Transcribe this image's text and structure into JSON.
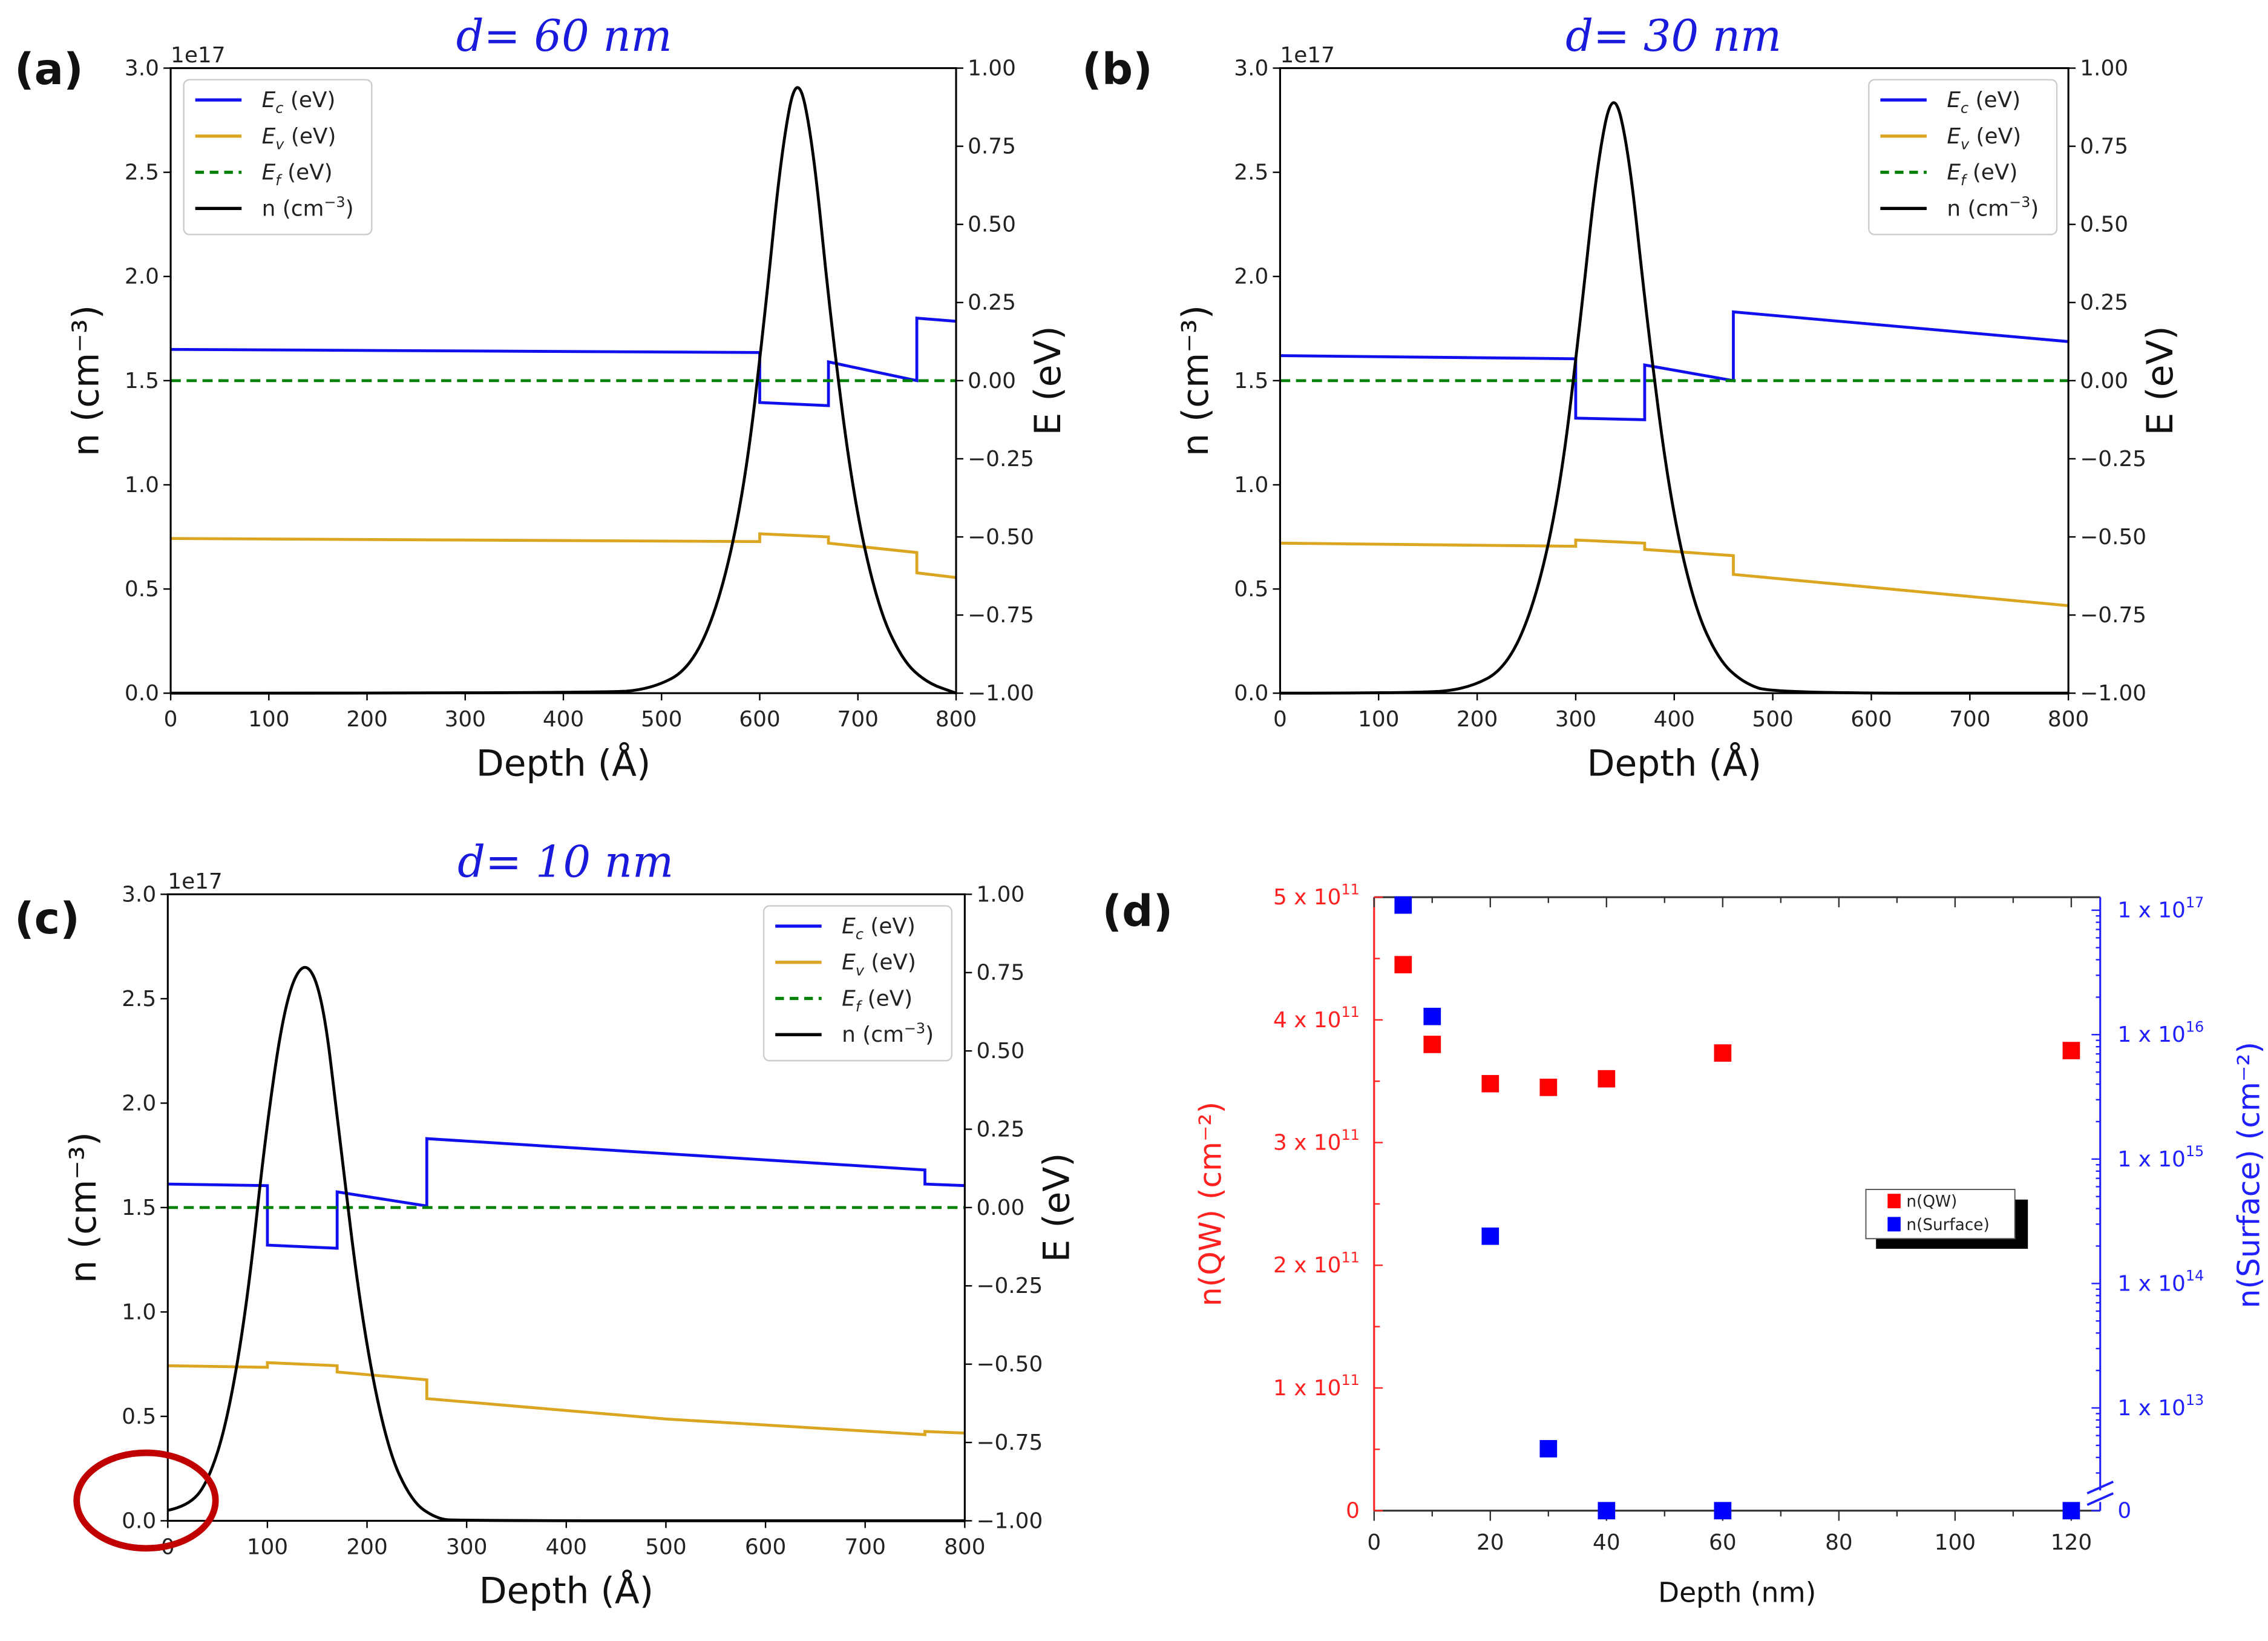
{
  "figure": {
    "panel_labels": [
      "(a)",
      "(b)",
      "(c)",
      "(d)"
    ]
  },
  "chart_data": [
    {
      "type": "line",
      "panel": "(a)",
      "title": "d= 60 nm",
      "xlabel": "Depth (Å)",
      "ylabel": "n (cm⁻³)",
      "ylabel_right": "E (eV)",
      "offset_text": "1e17",
      "xlim": [
        0,
        800
      ],
      "ylim": [
        0,
        3.0
      ],
      "ylim_right": [
        -1,
        1
      ],
      "xticks": [
        "0",
        "100",
        "200",
        "300",
        "400",
        "500",
        "600",
        "700",
        "800"
      ],
      "yticks": [
        "0.0",
        "0.5",
        "1.0",
        "1.5",
        "2.0",
        "2.5",
        "3.0"
      ],
      "yticks_right": [
        "−1.00",
        "−0.75",
        "−0.50",
        "−0.25",
        "0.00",
        "0.25",
        "0.50",
        "0.75",
        "1.00"
      ],
      "legend_position": "top-left",
      "series": [
        {
          "name": "Ec (eV)",
          "label_main": "E",
          "label_sub": "c",
          "label_rest": " (eV)",
          "axis": "right",
          "color": "#1010ee",
          "dash": false,
          "points": [
            [
              0,
              0.1
            ],
            [
              600,
              0.09
            ],
            [
              600,
              -0.07
            ],
            [
              670,
              -0.08
            ],
            [
              670,
              0.06
            ],
            [
              760,
              0.0
            ],
            [
              760,
              0.2
            ],
            [
              800,
              0.19
            ]
          ]
        },
        {
          "name": "Ev (eV)",
          "label_main": "E",
          "label_sub": "v",
          "label_rest": " (eV)",
          "axis": "right",
          "color": "#daa520",
          "dash": false,
          "points": [
            [
              0,
              -0.505
            ],
            [
              600,
              -0.515
            ],
            [
              600,
              -0.49
            ],
            [
              670,
              -0.5
            ],
            [
              670,
              -0.52
            ],
            [
              760,
              -0.55
            ],
            [
              760,
              -0.615
            ],
            [
              800,
              -0.63
            ]
          ]
        },
        {
          "name": "Ef (eV)",
          "label_main": "E",
          "label_sub": "f",
          "label_rest": " (eV)",
          "axis": "right",
          "color": "#008000",
          "dash": true,
          "points": [
            [
              0,
              0
            ],
            [
              800,
              0
            ]
          ]
        },
        {
          "name": "n (cm-3)",
          "label_main": "n (cm",
          "label_sup": "−3",
          "label_rest": ")",
          "axis": "left",
          "color": "#000000",
          "dash": false,
          "points": [
            [
              0,
              0
            ],
            [
              440,
              0
            ],
            [
              490,
              0.02
            ],
            [
              530,
              0.12
            ],
            [
              560,
              0.45
            ],
            [
              585,
              1.0
            ],
            [
              605,
              1.8
            ],
            [
              622,
              2.6
            ],
            [
              638,
              3.0
            ],
            [
              654,
              2.65
            ],
            [
              672,
              1.8
            ],
            [
              695,
              0.95
            ],
            [
              720,
              0.42
            ],
            [
              745,
              0.16
            ],
            [
              770,
              0.05
            ],
            [
              800,
              0
            ]
          ]
        }
      ]
    },
    {
      "type": "line",
      "panel": "(b)",
      "title": "d= 30 nm",
      "xlabel": "Depth (Å)",
      "ylabel": "n (cm⁻³)",
      "ylabel_right": "E (eV)",
      "offset_text": "1e17",
      "xlim": [
        0,
        800
      ],
      "ylim": [
        0,
        3.0
      ],
      "ylim_right": [
        -1,
        1
      ],
      "xticks": [
        "0",
        "100",
        "200",
        "300",
        "400",
        "500",
        "600",
        "700",
        "800"
      ],
      "yticks": [
        "0.0",
        "0.5",
        "1.0",
        "1.5",
        "2.0",
        "2.5",
        "3.0"
      ],
      "yticks_right": [
        "−1.00",
        "−0.75",
        "−0.50",
        "−0.25",
        "0.00",
        "0.25",
        "0.50",
        "0.75",
        "1.00"
      ],
      "legend_position": "top-right",
      "series": [
        {
          "name": "Ec (eV)",
          "label_main": "E",
          "label_sub": "c",
          "label_rest": " (eV)",
          "axis": "right",
          "color": "#1010ee",
          "dash": false,
          "points": [
            [
              0,
              0.08
            ],
            [
              300,
              0.07
            ],
            [
              300,
              -0.12
            ],
            [
              370,
              -0.125
            ],
            [
              370,
              0.05
            ],
            [
              460,
              0.0
            ],
            [
              460,
              0.22
            ],
            [
              800,
              0.125
            ]
          ]
        },
        {
          "name": "Ev (eV)",
          "label_main": "E",
          "label_sub": "v",
          "label_rest": " (eV)",
          "axis": "right",
          "color": "#daa520",
          "dash": false,
          "points": [
            [
              0,
              -0.52
            ],
            [
              300,
              -0.53
            ],
            [
              300,
              -0.51
            ],
            [
              370,
              -0.52
            ],
            [
              370,
              -0.54
            ],
            [
              460,
              -0.56
            ],
            [
              460,
              -0.62
            ],
            [
              800,
              -0.72
            ]
          ]
        },
        {
          "name": "Ef (eV)",
          "label_main": "E",
          "label_sub": "f",
          "label_rest": " (eV)",
          "axis": "right",
          "color": "#008000",
          "dash": true,
          "points": [
            [
              0,
              0
            ],
            [
              800,
              0
            ]
          ]
        },
        {
          "name": "n (cm-3)",
          "label_main": "n (cm",
          "label_sup": "−3",
          "label_rest": ")",
          "axis": "left",
          "color": "#000000",
          "dash": false,
          "points": [
            [
              0,
              0
            ],
            [
              140,
              0
            ],
            [
              190,
              0.02
            ],
            [
              230,
              0.12
            ],
            [
              260,
              0.45
            ],
            [
              285,
              1.0
            ],
            [
              305,
              1.8
            ],
            [
              322,
              2.55
            ],
            [
              338,
              2.92
            ],
            [
              354,
              2.6
            ],
            [
              372,
              1.8
            ],
            [
              395,
              0.95
            ],
            [
              420,
              0.42
            ],
            [
              445,
              0.16
            ],
            [
              470,
              0.05
            ],
            [
              500,
              0
            ],
            [
              800,
              0
            ]
          ]
        }
      ]
    },
    {
      "type": "line",
      "panel": "(c)",
      "title": "d= 10 nm",
      "xlabel": "Depth (Å)",
      "ylabel": "n (cm⁻³)",
      "ylabel_right": "E (eV)",
      "offset_text": "1e17",
      "xlim": [
        0,
        800
      ],
      "ylim": [
        0,
        3.0
      ],
      "ylim_right": [
        -1,
        1
      ],
      "xticks": [
        "0",
        "100",
        "200",
        "300",
        "400",
        "500",
        "600",
        "700",
        "800"
      ],
      "yticks": [
        "0.0",
        "0.5",
        "1.0",
        "1.5",
        "2.0",
        "2.5",
        "3.0"
      ],
      "yticks_right": [
        "−1.00",
        "−0.75",
        "−0.50",
        "−0.25",
        "0.00",
        "0.25",
        "0.50",
        "0.75",
        "1.00"
      ],
      "legend_position": "top-right",
      "annotation": "red circle highlighting nonzero n near Depth 0",
      "series": [
        {
          "name": "Ec (eV)",
          "label_main": "E",
          "label_sub": "c",
          "label_rest": " (eV)",
          "axis": "right",
          "color": "#1010ee",
          "dash": false,
          "points": [
            [
              0,
              0.075
            ],
            [
              100,
              0.07
            ],
            [
              100,
              -0.12
            ],
            [
              170,
              -0.13
            ],
            [
              170,
              0.05
            ],
            [
              260,
              0.005
            ],
            [
              260,
              0.22
            ],
            [
              760,
              0.12
            ],
            [
              760,
              0.075
            ],
            [
              800,
              0.07
            ]
          ]
        },
        {
          "name": "Ev (eV)",
          "label_main": "E",
          "label_sub": "v",
          "label_rest": " (eV)",
          "axis": "right",
          "color": "#daa520",
          "dash": false,
          "points": [
            [
              0,
              -0.505
            ],
            [
              100,
              -0.51
            ],
            [
              100,
              -0.495
            ],
            [
              170,
              -0.505
            ],
            [
              170,
              -0.525
            ],
            [
              260,
              -0.55
            ],
            [
              260,
              -0.61
            ],
            [
              500,
              -0.675
            ],
            [
              760,
              -0.725
            ],
            [
              760,
              -0.715
            ],
            [
              800,
              -0.72
            ]
          ]
        },
        {
          "name": "Ef (eV)",
          "label_main": "E",
          "label_sub": "f",
          "label_rest": " (eV)",
          "axis": "right",
          "color": "#008000",
          "dash": true,
          "points": [
            [
              0,
              0
            ],
            [
              800,
              0
            ]
          ]
        },
        {
          "name": "n (cm-3)",
          "label_main": "n (cm",
          "label_sup": "−3",
          "label_rest": ")",
          "axis": "left",
          "color": "#000000",
          "dash": false,
          "points": [
            [
              0,
              0.05
            ],
            [
              20,
              0.07
            ],
            [
              40,
              0.18
            ],
            [
              60,
              0.48
            ],
            [
              80,
              1.05
            ],
            [
              98,
              1.85
            ],
            [
              118,
              2.5
            ],
            [
              138,
              2.7
            ],
            [
              156,
              2.5
            ],
            [
              172,
              1.85
            ],
            [
              195,
              0.95
            ],
            [
              220,
              0.35
            ],
            [
              245,
              0.09
            ],
            [
              270,
              0.01
            ],
            [
              290,
              0
            ],
            [
              800,
              0
            ]
          ]
        }
      ]
    },
    {
      "type": "scatter",
      "panel": "(d)",
      "xlabel": "Depth (nm)",
      "ylabel": "n(QW) (cm⁻²)",
      "ylabel_right": "n(Surface) (cm⁻²)",
      "xlim": [
        0,
        125
      ],
      "ylim": [
        0,
        500000000000.0
      ],
      "ylim_right_log": [
        1000000000000.0,
        1e+17
      ],
      "right_axis_break_at_zero": true,
      "xticks": [
        "0",
        "20",
        "40",
        "60",
        "80",
        "100",
        "120"
      ],
      "yticks": [
        {
          "m": "0",
          "e": ""
        },
        {
          "m": "1 x 10",
          "e": "11"
        },
        {
          "m": "2 x 10",
          "e": "11"
        },
        {
          "m": "3 x 10",
          "e": "11"
        },
        {
          "m": "4 x 10",
          "e": "11"
        },
        {
          "m": "5 x 10",
          "e": "11"
        }
      ],
      "yticks_right": [
        {
          "m": "0",
          "e": ""
        },
        {
          "m": "1 x 10",
          "e": "13"
        },
        {
          "m": "1 x 10",
          "e": "14"
        },
        {
          "m": "1 x 10",
          "e": "15"
        },
        {
          "m": "1 x 10",
          "e": "16"
        },
        {
          "m": "1 x 10",
          "e": "17"
        }
      ],
      "legend_position": "center-right",
      "series": [
        {
          "name": "n(QW)",
          "axis": "left",
          "color": "#ff0000",
          "x": [
            5,
            10,
            20,
            30,
            40,
            60,
            120
          ],
          "y": [
            445000000000.0,
            380000000000.0,
            348000000000.0,
            345000000000.0,
            352000000000.0,
            373000000000.0,
            375000000000.0
          ]
        },
        {
          "name": "n(Surface)",
          "axis": "right",
          "color": "#0000ff",
          "x": [
            5,
            10,
            20,
            30,
            40,
            60,
            120
          ],
          "y": [
            1.1e+17,
            1.4e+16,
            240000000000000.0,
            4700000000000.0,
            0,
            0,
            0
          ]
        }
      ]
    }
  ]
}
